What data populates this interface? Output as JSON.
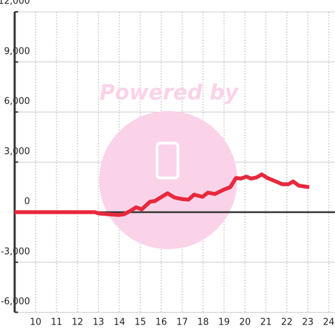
{
  "chart_data": {
    "type": "line",
    "watermark": "Powered by",
    "x": [
      9,
      12.83,
      13.03,
      13.47,
      13.97,
      14.23,
      14.47,
      14.8,
      15.07,
      15.47,
      15.7,
      15.97,
      16.3,
      16.63,
      16.97,
      17.3,
      17.57,
      17.97,
      18.23,
      18.57,
      18.97,
      19.3,
      19.57,
      19.8,
      20.07,
      20.3,
      20.57,
      20.8,
      21.07,
      21.47,
      21.8,
      22.07,
      22.3,
      22.57,
      23.07
    ],
    "series": [
      {
        "color": "#e8283c",
        "values": [
          0,
          0,
          -80,
          -125,
          -170,
          -125,
          40,
          290,
          170,
          630,
          670,
          880,
          1130,
          880,
          790,
          750,
          1050,
          920,
          1170,
          1090,
          1340,
          1500,
          2050,
          2010,
          2130,
          2010,
          2090,
          2260,
          2050,
          1840,
          1670,
          1670,
          1840,
          1590,
          1500
        ]
      }
    ],
    "xlim": [
      9,
      24.3
    ],
    "xticks": [
      10,
      11,
      12,
      13,
      14,
      15,
      16,
      17,
      18,
      19,
      20,
      21,
      22,
      23,
      24
    ],
    "ylim": [
      -6000,
      12000
    ],
    "yticks": [
      {
        "value": -6000,
        "label": "-6,000"
      },
      {
        "value": -3000,
        "label": "-3,000"
      },
      0,
      {
        "value": 3000,
        "label": "3,000"
      },
      {
        "value": 6000,
        "label": "6,000"
      },
      {
        "value": 9000,
        "label": "9,000"
      },
      {
        "value": 12000,
        "label": "12,000"
      }
    ],
    "grid": true
  }
}
